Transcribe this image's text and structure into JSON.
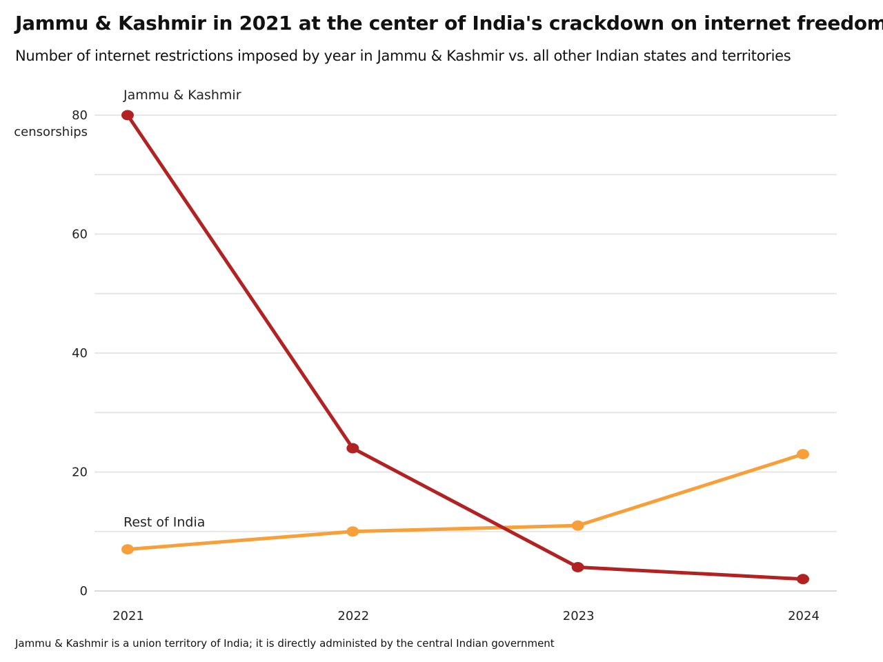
{
  "title": "Jammu & Kashmir in 2021 at the center of India's crackdown on internet freedom",
  "subtitle": "Number of internet restrictions imposed by year in Jammu & Kashmir vs. all other Indian states and territories",
  "footnote": "Jammu & Kashmir is a union territory of India; it is directly administed by the central Indian government",
  "chart_data": {
    "type": "line",
    "title": "Jammu & Kashmir in 2021 at the center of India's crackdown on internet freedom",
    "subtitle": "Number of internet restrictions imposed by year in Jammu & Kashmir vs. all other Indian states and territories",
    "x": [
      "2021",
      "2022",
      "2023",
      "2024"
    ],
    "series": [
      {
        "name": "Jammu & Kashmir",
        "color": "#b22222",
        "values": [
          80,
          24,
          4,
          2
        ]
      },
      {
        "name": "Rest of India",
        "color": "#f7a03a",
        "values": [
          7,
          10,
          11,
          23
        ]
      }
    ],
    "ylabel": "censorships",
    "ylim": [
      0,
      80
    ],
    "yticks": [
      0,
      20,
      40,
      60,
      80
    ],
    "ytick_labels": [
      "0",
      "20",
      "40",
      "60",
      "80"
    ],
    "grid": true,
    "grid_step": 10,
    "legend": "direct labels next to series start"
  }
}
